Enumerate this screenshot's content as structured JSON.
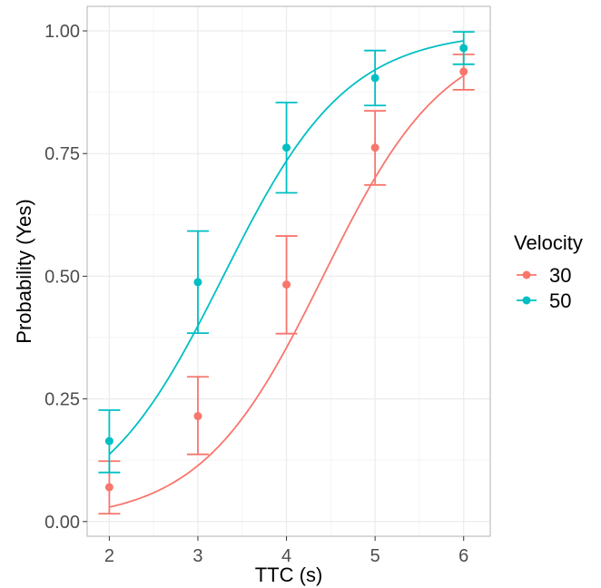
{
  "chart_data": {
    "type": "line",
    "xlabel": "TTC (s)",
    "ylabel": "Probability (Yes)",
    "xlim": [
      1.75,
      6.3
    ],
    "ylim": [
      -0.03,
      1.05
    ],
    "xticks": [
      2,
      3,
      4,
      5,
      6
    ],
    "yticks": [
      0.0,
      0.25,
      0.5,
      0.75,
      1.0
    ],
    "ytick_labels": [
      "0.00",
      "0.25",
      "0.50",
      "0.75",
      "1.00"
    ],
    "grid": true,
    "legend": {
      "title": "Velocity",
      "placement": "right"
    },
    "series": [
      {
        "name": "30",
        "color": "#F8766D",
        "points": [
          {
            "x": 2,
            "y": 0.07,
            "ymin": 0.016,
            "ymax": 0.123
          },
          {
            "x": 3,
            "y": 0.215,
            "ymin": 0.137,
            "ymax": 0.295
          },
          {
            "x": 4,
            "y": 0.483,
            "ymin": 0.383,
            "ymax": 0.582
          },
          {
            "x": 5,
            "y": 0.762,
            "ymin": 0.686,
            "ymax": 0.837
          },
          {
            "x": 6,
            "y": 0.917,
            "ymin": 0.88,
            "ymax": 0.952
          }
        ],
        "fit": {
          "intercept": -6.4,
          "slope": 1.45
        }
      },
      {
        "name": "50",
        "color": "#00BFC4",
        "points": [
          {
            "x": 2,
            "y": 0.164,
            "ymin": 0.1,
            "ymax": 0.227
          },
          {
            "x": 3,
            "y": 0.488,
            "ymin": 0.384,
            "ymax": 0.592
          },
          {
            "x": 4,
            "y": 0.762,
            "ymin": 0.67,
            "ymax": 0.854
          },
          {
            "x": 5,
            "y": 0.904,
            "ymin": 0.848,
            "ymax": 0.96
          },
          {
            "x": 6,
            "y": 0.965,
            "ymin": 0.932,
            "ymax": 0.998
          }
        ],
        "fit": {
          "intercept": -4.7,
          "slope": 1.43
        }
      }
    ]
  }
}
